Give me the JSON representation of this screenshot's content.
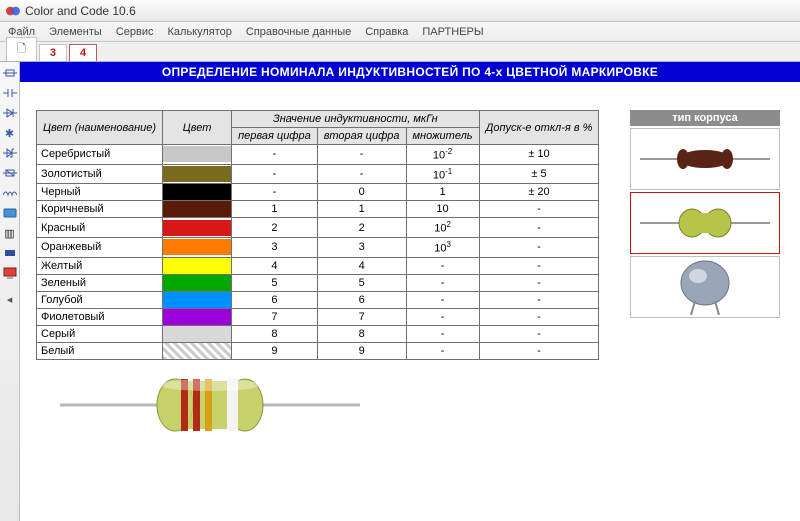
{
  "window": {
    "title": "Color and Code 10.6"
  },
  "menu": [
    "Файл",
    "Элементы",
    "Сервис",
    "Калькулятор",
    "Справочные данные",
    "Справка",
    "ПАРТНЕРЫ"
  ],
  "tabs": {
    "doc": "🗋",
    "t3": "3",
    "t4": "4"
  },
  "banner": "ОПРЕДЕЛЕНИЕ НОМИНАЛА ИНДУКТИВНОСТЕЙ ПО 4-х ЦВЕТНОЙ МАРКИРОВКЕ",
  "headers": {
    "name": "Цвет (наименование)",
    "color": "Цвет",
    "value_group": "Значение индуктивности, мкГн",
    "d1": "первая цифра",
    "d2": "вторая цифра",
    "mult": "множитель",
    "tol": "Допуск-е откл-я в %"
  },
  "rows": [
    {
      "name": "Серебристый",
      "color": "#c8c8c8",
      "pattern": "none",
      "d1": "-",
      "d2": "-",
      "mult": "10",
      "exp": "-2",
      "tol": "± 10"
    },
    {
      "name": "Золотистый",
      "color": "#7a6a1e",
      "pattern": "none",
      "d1": "-",
      "d2": "-",
      "mult": "10",
      "exp": "-1",
      "tol": "± 5"
    },
    {
      "name": "Черный",
      "color": "#000000",
      "pattern": "none",
      "d1": "-",
      "d2": "0",
      "mult": "1",
      "exp": "",
      "tol": "± 20"
    },
    {
      "name": "Коричневый",
      "color": "#5a1a0a",
      "pattern": "none",
      "d1": "1",
      "d2": "1",
      "mult": "10",
      "exp": "",
      "tol": "-"
    },
    {
      "name": "Красный",
      "color": "#d81818",
      "pattern": "none",
      "d1": "2",
      "d2": "2",
      "mult": "10",
      "exp": "2",
      "tol": "-"
    },
    {
      "name": "Оранжевый",
      "color": "#ff7a00",
      "pattern": "none",
      "d1": "3",
      "d2": "3",
      "mult": "10",
      "exp": "3",
      "tol": "-"
    },
    {
      "name": "Желтый",
      "color": "#ffff00",
      "pattern": "none",
      "d1": "4",
      "d2": "4",
      "mult": "-",
      "exp": "",
      "tol": "-"
    },
    {
      "name": "Зеленый",
      "color": "#00a800",
      "pattern": "none",
      "d1": "5",
      "d2": "5",
      "mult": "-",
      "exp": "",
      "tol": "-"
    },
    {
      "name": "Голубой",
      "color": "#0090ff",
      "pattern": "none",
      "d1": "6",
      "d2": "6",
      "mult": "-",
      "exp": "",
      "tol": "-"
    },
    {
      "name": "Фиолетовый",
      "color": "#9a00d8",
      "pattern": "none",
      "d1": "7",
      "d2": "7",
      "mult": "-",
      "exp": "",
      "tol": "-"
    },
    {
      "name": "Серый",
      "color": "#d8d8d8",
      "pattern": "none",
      "d1": "8",
      "d2": "8",
      "mult": "-",
      "exp": "",
      "tol": "-"
    },
    {
      "name": "Белый",
      "color": "#ffffff",
      "pattern": "hatch",
      "d1": "9",
      "d2": "9",
      "mult": "-",
      "exp": "",
      "tol": "-"
    }
  ],
  "right": {
    "header": "тип корпуса",
    "selected_index": 1
  },
  "cases": [
    {
      "body": "#5a2414",
      "shape": "resistor"
    },
    {
      "body": "#b6c44a",
      "shape": "dumbbell"
    },
    {
      "body": "#9aa6b8",
      "shape": "disc"
    }
  ],
  "inductor": {
    "body": "#c8d26a",
    "band1": "#b22a16",
    "band2": "#b22a16",
    "band3": "#d7a016",
    "band4": "#f4f4f4",
    "lead": "#b8b8b8"
  }
}
